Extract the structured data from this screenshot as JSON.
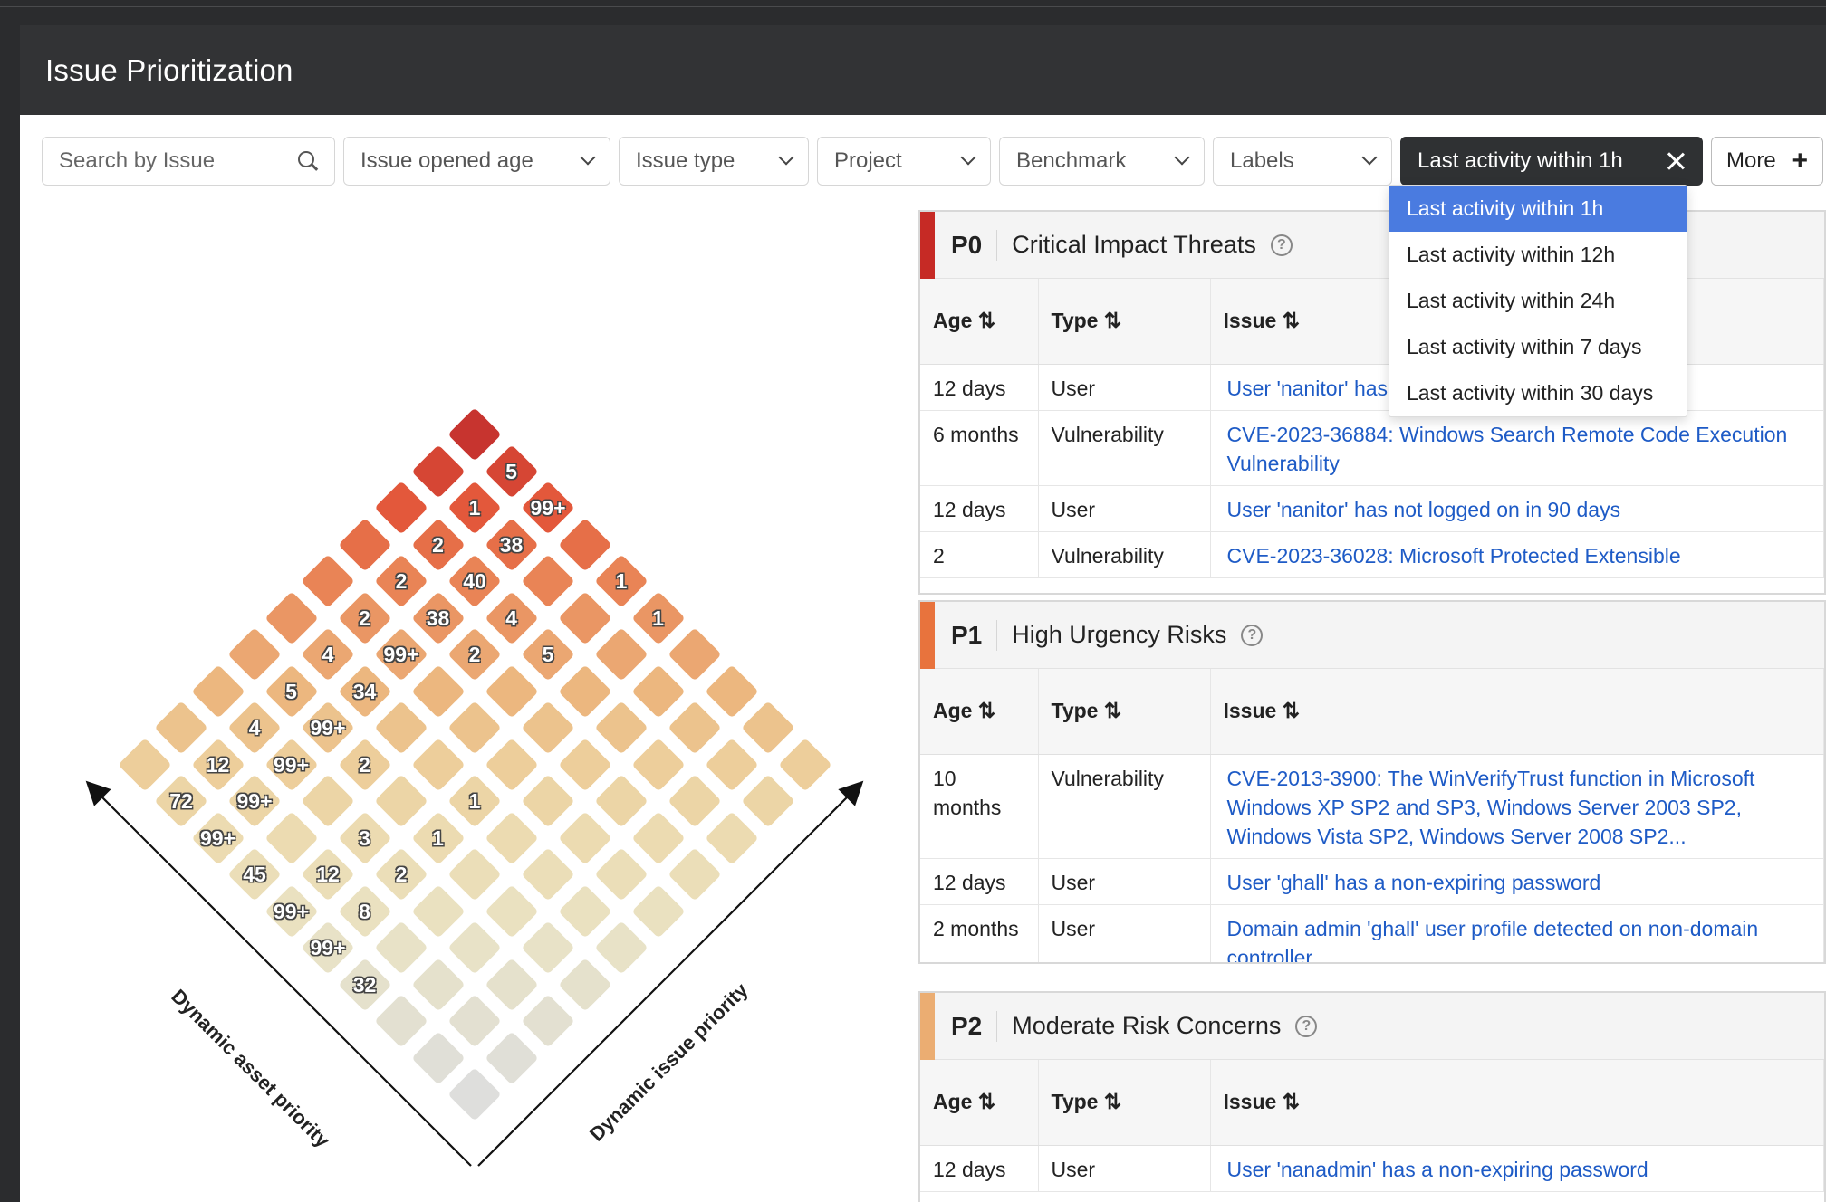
{
  "panel": {
    "title": "Issue Prioritization"
  },
  "filters": {
    "search_placeholder": "Search by Issue",
    "dropdowns": [
      "Issue opened age",
      "Issue type",
      "Project",
      "Benchmark",
      "Labels"
    ],
    "active_filter": "Last activity within 1h",
    "more_label": "More"
  },
  "activity_dropdown": {
    "selected": "Last activity within 1h",
    "options": [
      "Last activity within 1h",
      "Last activity within 12h",
      "Last activity within 24h",
      "Last activity within 7 days",
      "Last activity within 30 days"
    ]
  },
  "heatmap": {
    "x_axis_label": "Dynamic asset priority",
    "y_axis_label": "Dynamic issue priority",
    "cell_values": [
      {
        "a": 0,
        "i": 1,
        "v": "5"
      },
      {
        "a": 1,
        "i": 1,
        "v": "1"
      },
      {
        "a": 0,
        "i": 2,
        "v": "99+"
      },
      {
        "a": 1,
        "i": 2,
        "v": "38"
      },
      {
        "a": 2,
        "i": 1,
        "v": "2"
      },
      {
        "a": 3,
        "i": 1,
        "v": "2"
      },
      {
        "a": 2,
        "i": 2,
        "v": "40"
      },
      {
        "a": 0,
        "i": 4,
        "v": "1"
      },
      {
        "a": 0,
        "i": 5,
        "v": "1"
      },
      {
        "a": 4,
        "i": 1,
        "v": "2"
      },
      {
        "a": 3,
        "i": 2,
        "v": "38"
      },
      {
        "a": 2,
        "i": 3,
        "v": "4"
      },
      {
        "a": 5,
        "i": 1,
        "v": "4"
      },
      {
        "a": 4,
        "i": 2,
        "v": "99+"
      },
      {
        "a": 3,
        "i": 3,
        "v": "2"
      },
      {
        "a": 2,
        "i": 4,
        "v": "5"
      },
      {
        "a": 6,
        "i": 1,
        "v": "5"
      },
      {
        "a": 5,
        "i": 2,
        "v": "34"
      },
      {
        "a": 7,
        "i": 1,
        "v": "4"
      },
      {
        "a": 6,
        "i": 2,
        "v": "99+"
      },
      {
        "a": 8,
        "i": 1,
        "v": "12"
      },
      {
        "a": 7,
        "i": 2,
        "v": "99+"
      },
      {
        "a": 6,
        "i": 3,
        "v": "2"
      },
      {
        "a": 9,
        "i": 1,
        "v": "72"
      },
      {
        "a": 8,
        "i": 2,
        "v": "99+"
      },
      {
        "a": 5,
        "i": 5,
        "v": "1"
      },
      {
        "a": 9,
        "i": 2,
        "v": "99+"
      },
      {
        "a": 7,
        "i": 4,
        "v": "3"
      },
      {
        "a": 6,
        "i": 5,
        "v": "1"
      },
      {
        "a": 9,
        "i": 3,
        "v": "45"
      },
      {
        "a": 8,
        "i": 4,
        "v": "12"
      },
      {
        "a": 7,
        "i": 5,
        "v": "2"
      },
      {
        "a": 9,
        "i": 4,
        "v": "99+"
      },
      {
        "a": 8,
        "i": 5,
        "v": "8"
      },
      {
        "a": 9,
        "i": 5,
        "v": "99+"
      },
      {
        "a": 9,
        "i": 6,
        "v": "32"
      }
    ]
  },
  "table_headers": {
    "age": "Age ⇅",
    "type": "Type ⇅",
    "issue": "Issue ⇅"
  },
  "sections": [
    {
      "code": "P0",
      "title": "Critical Impact Threats",
      "color": "#c62a25",
      "rows": [
        {
          "age": "12 days",
          "type": "User",
          "issue": "User 'nanitor' has a non-expiring password"
        },
        {
          "age": "6 months",
          "type": "Vulnerability",
          "issue": "CVE-2023-36884: Windows Search Remote Code Execution Vulnerability"
        },
        {
          "age": "12 days",
          "type": "User",
          "issue": "User 'nanitor' has not logged on in 90 days"
        },
        {
          "age": "2",
          "type": "Vulnerability",
          "issue": "CVE-2023-36028: Microsoft Protected Extensible"
        }
      ]
    },
    {
      "code": "P1",
      "title": "High Urgency Risks",
      "color": "#e8733d",
      "rows": [
        {
          "age": "10 months",
          "type": "Vulnerability",
          "issue": "CVE-2013-3900: The WinVerifyTrust function in Microsoft Windows XP SP2 and SP3, Windows Server 2003 SP2, Windows Vista SP2, Windows Server 2008 SP2..."
        },
        {
          "age": "12 days",
          "type": "User",
          "issue": "User 'ghall' has a non-expiring password"
        },
        {
          "age": "2 months",
          "type": "User",
          "issue": "Domain admin 'ghall' user profile detected on non-domain controller"
        }
      ]
    },
    {
      "code": "P2",
      "title": "Moderate Risk Concerns",
      "color": "#ebad72",
      "rows": [
        {
          "age": "12 days",
          "type": "User",
          "issue": "User 'nanadmin' has a non-expiring password"
        }
      ]
    }
  ]
}
